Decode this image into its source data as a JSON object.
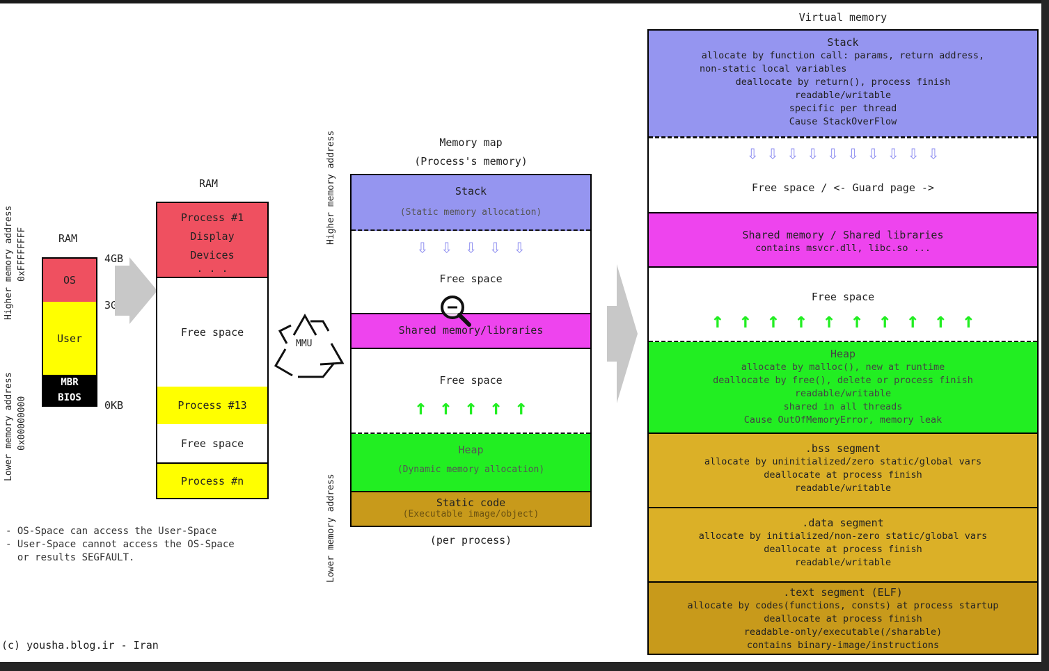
{
  "left_labels": {
    "higher_address": "Higher memory address",
    "higher_value": "0xFFFFFFFF",
    "lower_address": "Lower memory address",
    "lower_value": "0x00000000"
  },
  "ram_small": {
    "title": "RAM",
    "os": "OS",
    "user": "User",
    "mbr": "MBR",
    "bios": "BIOS",
    "mark_4gb": "4GB",
    "mark_3gb": "3GB",
    "mark_0kb": "0KB"
  },
  "notes": {
    "line1": "- OS-Space can access the User-Space",
    "line2": "- User-Space cannot access the OS-Space",
    "line3": "  or results SEGFAULT."
  },
  "copyright": "(c) yousha.blog.ir - Iran",
  "ram_large": {
    "title": "RAM",
    "process1": "Process #1",
    "display": "Display",
    "devices": "Devices",
    "dots": ". . .",
    "free1": "Free space",
    "process13": "Process #13",
    "free2": "Free space",
    "processn": "Process #n"
  },
  "mmu": "MMU",
  "memory_map": {
    "title1": "Memory map",
    "title2": "(Process's memory)",
    "higher": "Higher memory address",
    "lower": "Lower memory address",
    "stack": "Stack",
    "stack_sub": "(Static memory allocation)",
    "free_top": "Free space",
    "shared": "Shared memory/libraries",
    "free_bottom": "Free space",
    "heap": "Heap",
    "heap_sub": "(Dynamic memory allocation)",
    "static_code": "Static code",
    "static_sub": "(Executable image/object)",
    "footer": "(per process)"
  },
  "virtual_memory": {
    "title": "Virtual memory",
    "stack": {
      "title": "Stack",
      "lines": [
        "allocate by function call: params, return address,",
        "non-static local variables",
        "deallocate by return(), process finish",
        "readable/writable",
        "specific per thread",
        "Cause StackOverFlow"
      ]
    },
    "free_guard": "Free space / <- Guard page ->",
    "shared": {
      "title": "Shared memory / Shared libraries",
      "line": "contains msvcr.dll, libc.so ..."
    },
    "free_space": "Free space",
    "heap": {
      "title": "Heap",
      "lines": [
        "allocate by malloc(), new at runtime",
        "deallocate by free(), delete or process finish",
        "readable/writable",
        "shared in all threads",
        "Cause OutOfMemoryError, memory leak"
      ]
    },
    "bss": {
      "title": ".bss segment",
      "lines": [
        "allocate by uninitialized/zero static/global vars",
        "deallocate at process finish",
        "readable/writable"
      ]
    },
    "data": {
      "title": ".data segment",
      "lines": [
        "allocate by initialized/non-zero static/global vars",
        "deallocate at process finish",
        "readable/writable"
      ]
    },
    "text": {
      "title": ".text segment (ELF)",
      "lines": [
        "allocate by codes(functions, consts) at process startup",
        "deallocate at process finish",
        "readable-only/executable(/sharable)",
        "contains binary-image/instructions"
      ]
    }
  },
  "colors": {
    "os_red": "#ef5060",
    "user_yellow": "#ffff00",
    "stack_purple": "#9595f0",
    "shared_magenta": "#ee44ee",
    "heap_green": "#22ee22",
    "segment_gold": "#dbb027",
    "static_gold": "#c89a1b"
  }
}
